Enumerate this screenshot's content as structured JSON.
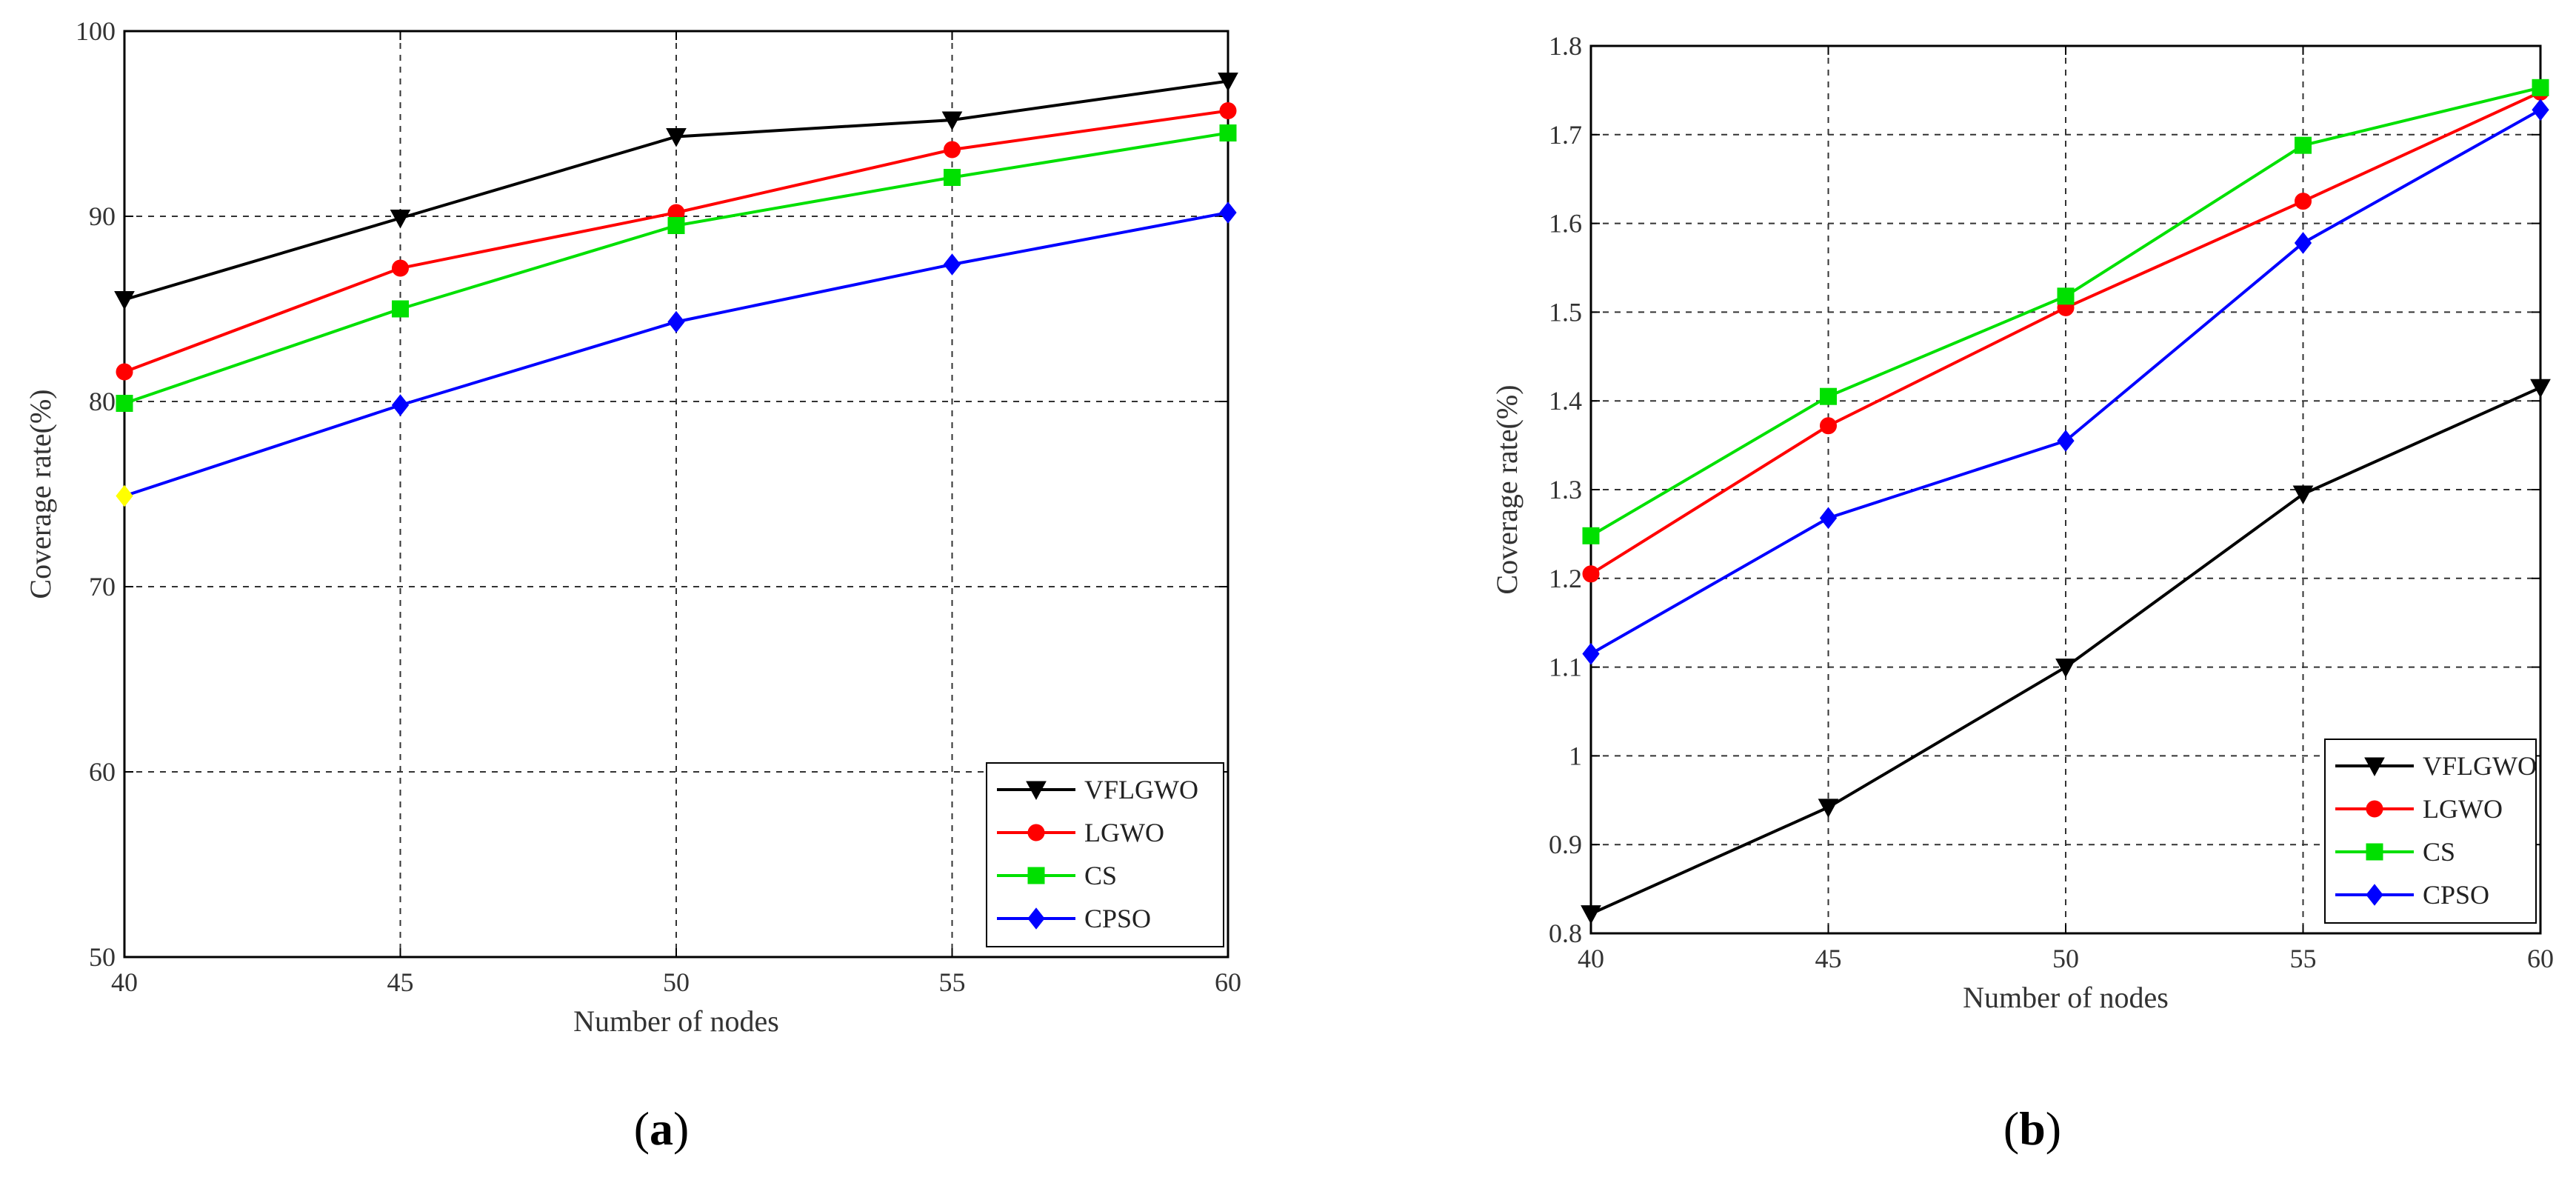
{
  "colors": {
    "VFLGWO": "#000000",
    "LGWO": "#ff0000",
    "CS": "#00e000",
    "CPSO": "#0000ff",
    "grid": "#333333",
    "axis": "#000000",
    "cpso_first_marker": "#ffff00"
  },
  "chart_data": [
    {
      "type": "line",
      "caption_open": "(",
      "caption_letter": "a",
      "caption_close": ")",
      "xlabel": "Number of nodes",
      "ylabel": "Coverage rate(%)",
      "x": [
        40,
        45,
        50,
        55,
        60
      ],
      "xticks": [
        40,
        45,
        50,
        55,
        60
      ],
      "xtick_labels": [
        "40",
        "45",
        "50",
        "55",
        "60"
      ],
      "xlim": [
        40,
        60
      ],
      "yticks": [
        50,
        60,
        70,
        80,
        90,
        100
      ],
      "ytick_labels": [
        "50",
        "60",
        "70",
        "80",
        "90",
        "100"
      ],
      "ylim": [
        50,
        100
      ],
      "grid": true,
      "legend_position": "bottom-right",
      "series": [
        {
          "name": "VFLGWO",
          "marker": "triangle-down",
          "values": [
            85.5,
            89.9,
            94.3,
            95.2,
            97.3
          ]
        },
        {
          "name": "LGWO",
          "marker": "circle",
          "values": [
            81.6,
            87.2,
            90.2,
            93.6,
            95.7
          ]
        },
        {
          "name": "CS",
          "marker": "square",
          "values": [
            79.9,
            85.0,
            89.5,
            92.1,
            94.5
          ]
        },
        {
          "name": "CPSO",
          "marker": "diamond",
          "values": [
            74.9,
            79.8,
            84.3,
            87.4,
            90.2
          ]
        }
      ]
    },
    {
      "type": "line",
      "caption_open": "(",
      "caption_letter": "b",
      "caption_close": ")",
      "xlabel": "Number of nodes",
      "ylabel": "Coverage rate(%)",
      "x": [
        40,
        45,
        50,
        55,
        60
      ],
      "xticks": [
        40,
        45,
        50,
        55,
        60
      ],
      "xtick_labels": [
        "40",
        "45",
        "50",
        "55",
        "60"
      ],
      "xlim": [
        40,
        60
      ],
      "yticks": [
        0.8,
        0.9,
        1.0,
        1.1,
        1.2,
        1.3,
        1.4,
        1.5,
        1.6,
        1.7,
        1.8
      ],
      "ytick_labels": [
        "0.8",
        "0.9",
        "1",
        "1.1",
        "1.2",
        "1.3",
        "1.4",
        "1.5",
        "1.6",
        "1.7",
        "1.8"
      ],
      "ylim": [
        0.8,
        1.8
      ],
      "grid": true,
      "legend_position": "bottom-right",
      "series": [
        {
          "name": "VFLGWO",
          "marker": "triangle-down",
          "values": [
            0.822,
            0.942,
            1.1,
            1.295,
            1.415
          ]
        },
        {
          "name": "LGWO",
          "marker": "circle",
          "values": [
            1.205,
            1.372,
            1.505,
            1.625,
            1.748
          ]
        },
        {
          "name": "CS",
          "marker": "square",
          "values": [
            1.248,
            1.405,
            1.518,
            1.688,
            1.753
          ]
        },
        {
          "name": "CPSO",
          "marker": "diamond",
          "values": [
            1.115,
            1.268,
            1.355,
            1.578,
            1.728
          ]
        }
      ]
    }
  ]
}
